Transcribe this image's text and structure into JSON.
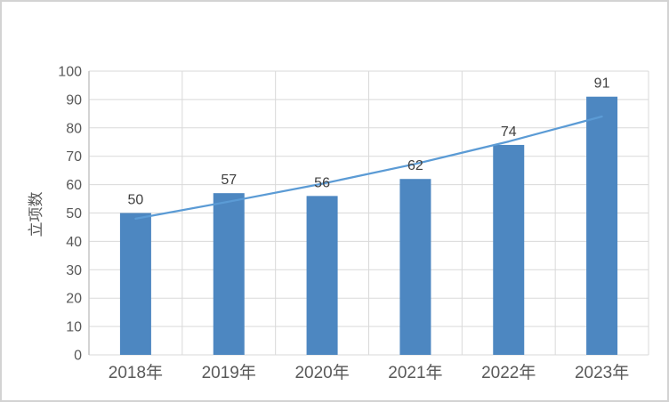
{
  "chart_data": {
    "type": "bar",
    "title": "",
    "categories": [
      "2018年",
      "2019年",
      "2020年",
      "2021年",
      "2022年",
      "2023年"
    ],
    "values": [
      50,
      57,
      56,
      62,
      74,
      91
    ],
    "data_labels_shown": true,
    "xlabel": "",
    "ylabel": "立项数",
    "ylim": [
      0,
      100
    ],
    "ytick_step": 10,
    "grid": true,
    "legend": "none",
    "trendline": {
      "type": "exponential",
      "values_at_categories": [
        48,
        54,
        60.3,
        67.3,
        75.2,
        84
      ]
    }
  },
  "colors": {
    "bar_fill": "#4D87C1",
    "trend_line": "#5B9BD5",
    "gridline": "#D9D9D9",
    "axis_line": "#C6C6C6",
    "axis_text": "#595959",
    "data_label_text": "#404040",
    "frame_border": "#D3D3D3",
    "background": "#FFFFFF"
  }
}
